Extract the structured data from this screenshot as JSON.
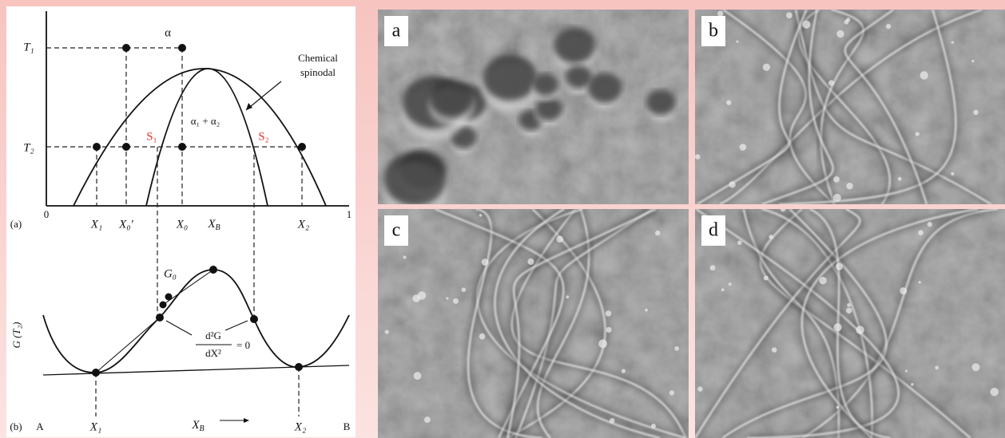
{
  "panel_a": {
    "tag": "(a)",
    "phase": "α",
    "t1": "T₁",
    "t2": "T₂",
    "spinodal": [
      "Chemical",
      "spinodal"
    ],
    "region": "α₁ + α₂",
    "s1": "S₁",
    "s2": "S₂",
    "x_zero": "0",
    "x1": "X₁",
    "x0_prime": "X₀′",
    "x0": "X₀",
    "x_b": [
      "X",
      "B"
    ],
    "x2": "X₂",
    "x_one": "1"
  },
  "panel_b": {
    "tag": "(b)",
    "y_label": "G (T₂)",
    "g0": "G₀",
    "numerator": "d²G",
    "denominator": "dX²",
    "equals": "= 0",
    "a": "A",
    "x1": "X₁",
    "x_b": [
      "X",
      "B"
    ],
    "x2": "X₂",
    "b": "B"
  },
  "micrographs": [
    {
      "label": "a"
    },
    {
      "label": "b"
    },
    {
      "label": "c"
    },
    {
      "label": "d"
    }
  ]
}
